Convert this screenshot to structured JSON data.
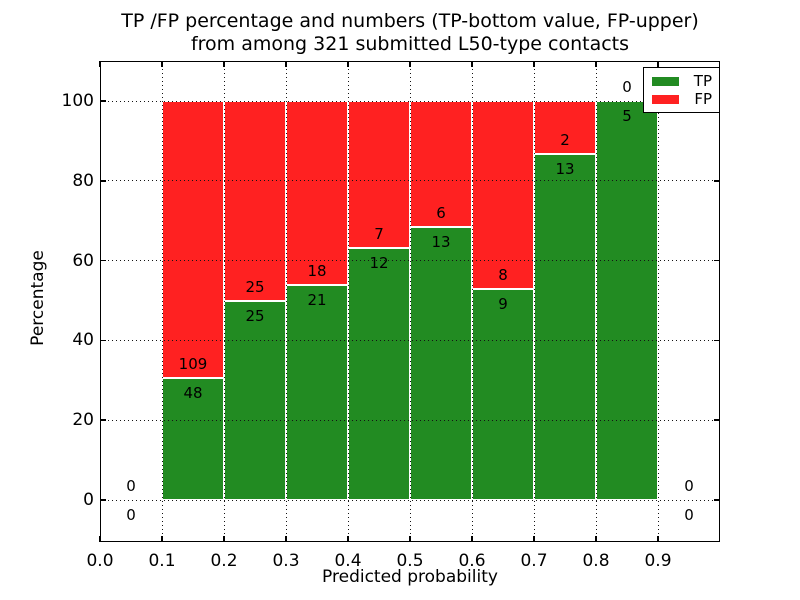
{
  "chart_data": {
    "type": "bar",
    "stacked": true,
    "units": "percent",
    "title_line1": "TP /FP percentage and numbers (TP-bottom value, FP-upper)",
    "title_line2": "from among 321 submitted L50-type contacts",
    "xlabel": "Predicted probability",
    "ylabel": "Percentage",
    "xlim": [
      0.0,
      1.0
    ],
    "ylim": [
      -10.5,
      110
    ],
    "grid": "dotted",
    "legend_position": "upper right",
    "colors": {
      "tp": "#228b22",
      "fp": "#ff2121"
    },
    "legend": {
      "entries": [
        {
          "label": "TP",
          "color": "#228b22"
        },
        {
          "label": "FP",
          "color": "#ff2121"
        }
      ]
    },
    "x_ticks": [
      {
        "value": 0.0,
        "label": "0.0"
      },
      {
        "value": 0.1,
        "label": "0.1"
      },
      {
        "value": 0.2,
        "label": "0.2"
      },
      {
        "value": 0.3,
        "label": "0.3"
      },
      {
        "value": 0.4,
        "label": "0.4"
      },
      {
        "value": 0.5,
        "label": "0.5"
      },
      {
        "value": 0.6,
        "label": "0.6"
      },
      {
        "value": 0.7,
        "label": "0.7"
      },
      {
        "value": 0.8,
        "label": "0.8"
      },
      {
        "value": 0.9,
        "label": "0.9"
      }
    ],
    "y_ticks": [
      {
        "value": 0,
        "label": "0"
      },
      {
        "value": 20,
        "label": "20"
      },
      {
        "value": 40,
        "label": "40"
      },
      {
        "value": 60,
        "label": "60"
      },
      {
        "value": 80,
        "label": "80"
      },
      {
        "value": 100,
        "label": "100"
      }
    ],
    "bins": [
      {
        "range": [
          0.0,
          0.1
        ],
        "tp": 0,
        "fp": 0
      },
      {
        "range": [
          0.1,
          0.2
        ],
        "tp": 48,
        "fp": 109
      },
      {
        "range": [
          0.2,
          0.3
        ],
        "tp": 25,
        "fp": 25
      },
      {
        "range": [
          0.3,
          0.4
        ],
        "tp": 21,
        "fp": 18
      },
      {
        "range": [
          0.4,
          0.5
        ],
        "tp": 12,
        "fp": 7
      },
      {
        "range": [
          0.5,
          0.6
        ],
        "tp": 13,
        "fp": 6
      },
      {
        "range": [
          0.6,
          0.7
        ],
        "tp": 9,
        "fp": 8
      },
      {
        "range": [
          0.7,
          0.8
        ],
        "tp": 13,
        "fp": 2
      },
      {
        "range": [
          0.8,
          0.9
        ],
        "tp": 5,
        "fp": 0
      },
      {
        "range": [
          0.9,
          1.0
        ],
        "tp": 0,
        "fp": 0
      }
    ]
  }
}
